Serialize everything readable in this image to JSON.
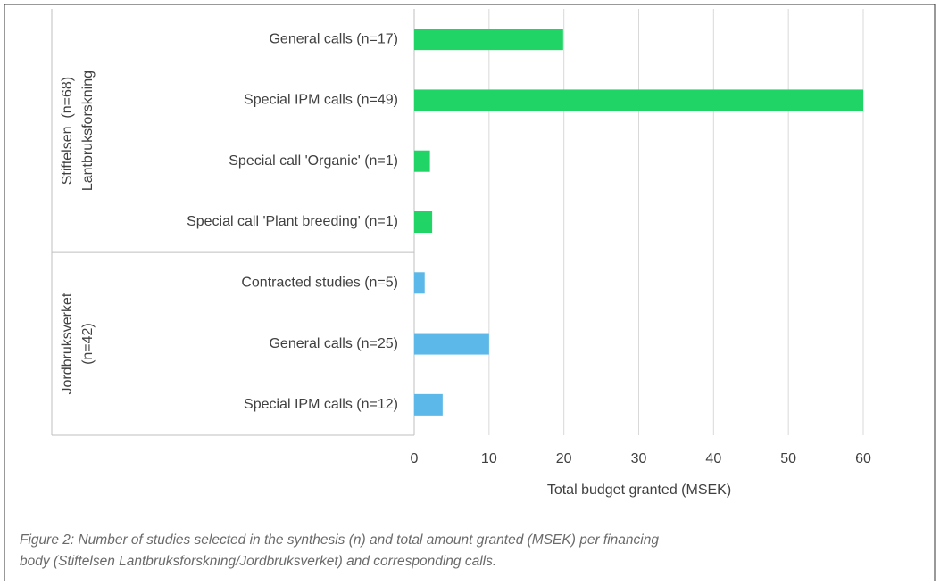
{
  "chart_data": {
    "type": "bar",
    "orientation": "horizontal",
    "categories": [
      "General calls (n=17)",
      "Special IPM calls (n=49)",
      "Special call 'Organic' (n=1)",
      "Special call 'Plant breeding' (n=1)",
      "Contracted studies (n=5)",
      "General calls (n=25)",
      "Special IPM calls (n=12)"
    ],
    "groups": [
      {
        "lines": [
          "Stiftelsen  (n=68)",
          "Lantbruksforskning"
        ],
        "color": "#21d466",
        "members": 4
      },
      {
        "lines": [
          "Jordbruksverket",
          "(n=42)"
        ],
        "color": "#5bb8e8",
        "members": 3
      }
    ],
    "values": [
      19.9,
      60,
      2.1,
      2.4,
      1.4,
      10,
      3.8
    ],
    "xlim": [
      0,
      60
    ],
    "xticks": [
      0,
      10,
      20,
      30,
      40,
      50,
      60
    ],
    "grid": true,
    "xlabel": "Total budget granted (MSEK)",
    "caption": [
      "Figure 2: Number of studies selected in the synthesis (n) and total amount granted (MSEK) per financing",
      "body (Stiftelsen Lantbruksforskning/Jordbruksverket) and corresponding calls."
    ]
  }
}
